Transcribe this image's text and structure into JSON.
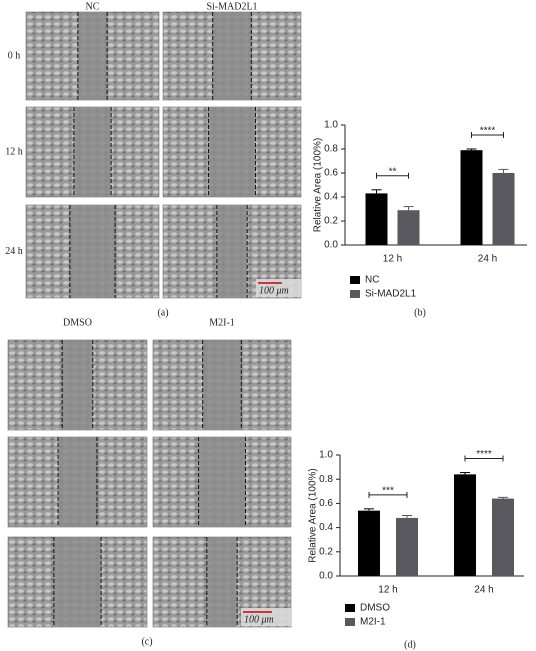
{
  "figure": {
    "panels": [
      {
        "label": "(a)",
        "columns": [
          "NC",
          "Si-MAD2L1"
        ],
        "rows": [
          "0 h",
          "12 h",
          "24 h"
        ],
        "scale_bar": "100 μm"
      },
      {
        "label": "(c)",
        "columns": [
          "DMSO",
          "M2I-1"
        ],
        "scale_bar": "100 μm"
      }
    ]
  },
  "chart_data": [
    {
      "type": "bar",
      "panel_label": "(b)",
      "ylabel": "Relative Area (100%)",
      "categories": [
        "12 h",
        "24 h"
      ],
      "annotations": [
        "**",
        "****"
      ],
      "series": [
        {
          "name": "NC",
          "color": "#000000",
          "values": [
            0.43,
            0.79
          ],
          "errors": [
            0.03,
            0.01
          ]
        },
        {
          "name": "Si-MAD2L1",
          "color": "#58585e",
          "values": [
            0.29,
            0.6
          ],
          "errors": [
            0.03,
            0.03
          ]
        }
      ],
      "ylim": [
        0,
        1
      ],
      "yticks": [
        {
          "value": 0,
          "label": "0.0"
        },
        0.2,
        0.4,
        0.6,
        0.8,
        {
          "value": 1,
          "label": "1.0"
        }
      ]
    },
    {
      "type": "bar",
      "panel_label": "(d)",
      "ylabel": "Relative Area (100%)",
      "categories": [
        "12 h",
        "24 h"
      ],
      "annotations": [
        "***",
        "****"
      ],
      "series": [
        {
          "name": "DMSO",
          "color": "#000000",
          "values": [
            0.54,
            0.84
          ],
          "errors": [
            0.015,
            0.015
          ]
        },
        {
          "name": "M2I-1",
          "color": "#58585e",
          "values": [
            0.48,
            0.64
          ],
          "errors": [
            0.02,
            0.01
          ]
        }
      ],
      "ylim": [
        0,
        1
      ],
      "yticks": [
        {
          "value": 0,
          "label": "0.0"
        },
        0.2,
        0.4,
        0.6,
        0.8,
        {
          "value": 1,
          "label": "1.0"
        }
      ]
    }
  ]
}
